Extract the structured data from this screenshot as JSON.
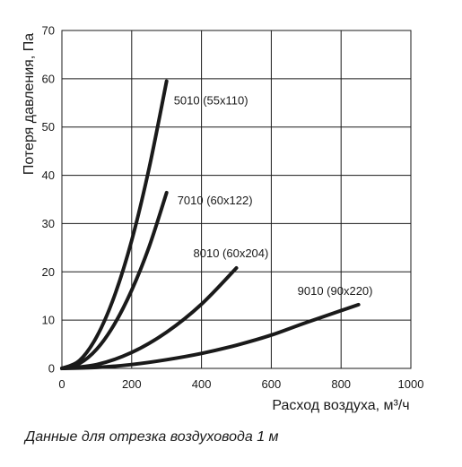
{
  "chart_data": {
    "type": "line",
    "xlabel": "Расход воздуха, м³/ч",
    "ylabel": "Потеря давления, Па",
    "xlim": [
      0,
      1000
    ],
    "ylim": [
      0,
      70
    ],
    "xticks": [
      0,
      200,
      400,
      600,
      800,
      1000
    ],
    "yticks": [
      0,
      10,
      20,
      30,
      40,
      50,
      60,
      70
    ],
    "grid": true,
    "line_color": "#1a1a1a",
    "series": [
      {
        "name": "5010 (55x110)",
        "x": [
          0,
          50,
          100,
          150,
          200,
          250,
          300
        ],
        "y": [
          0,
          1.6,
          6.6,
          14.9,
          26.5,
          41.5,
          59.5
        ]
      },
      {
        "name": "7010 (60x122)",
        "x": [
          0,
          50,
          100,
          150,
          200,
          250,
          300
        ],
        "y": [
          0,
          1.0,
          4.0,
          9.1,
          16.2,
          25.2,
          36.4
        ]
      },
      {
        "name": "8010 (60x204)",
        "x": [
          0,
          100,
          200,
          300,
          400,
          500
        ],
        "y": [
          0,
          0.8,
          3.3,
          7.5,
          13.3,
          20.8
        ]
      },
      {
        "name": "9010 (90x220)",
        "x": [
          0,
          100,
          200,
          300,
          400,
          500,
          600,
          700,
          850
        ],
        "y": [
          0,
          0.2,
          0.8,
          1.8,
          3.1,
          4.8,
          6.9,
          9.5,
          13.2
        ]
      }
    ]
  },
  "caption": "Данные для отрезка воздуховода 1 м"
}
